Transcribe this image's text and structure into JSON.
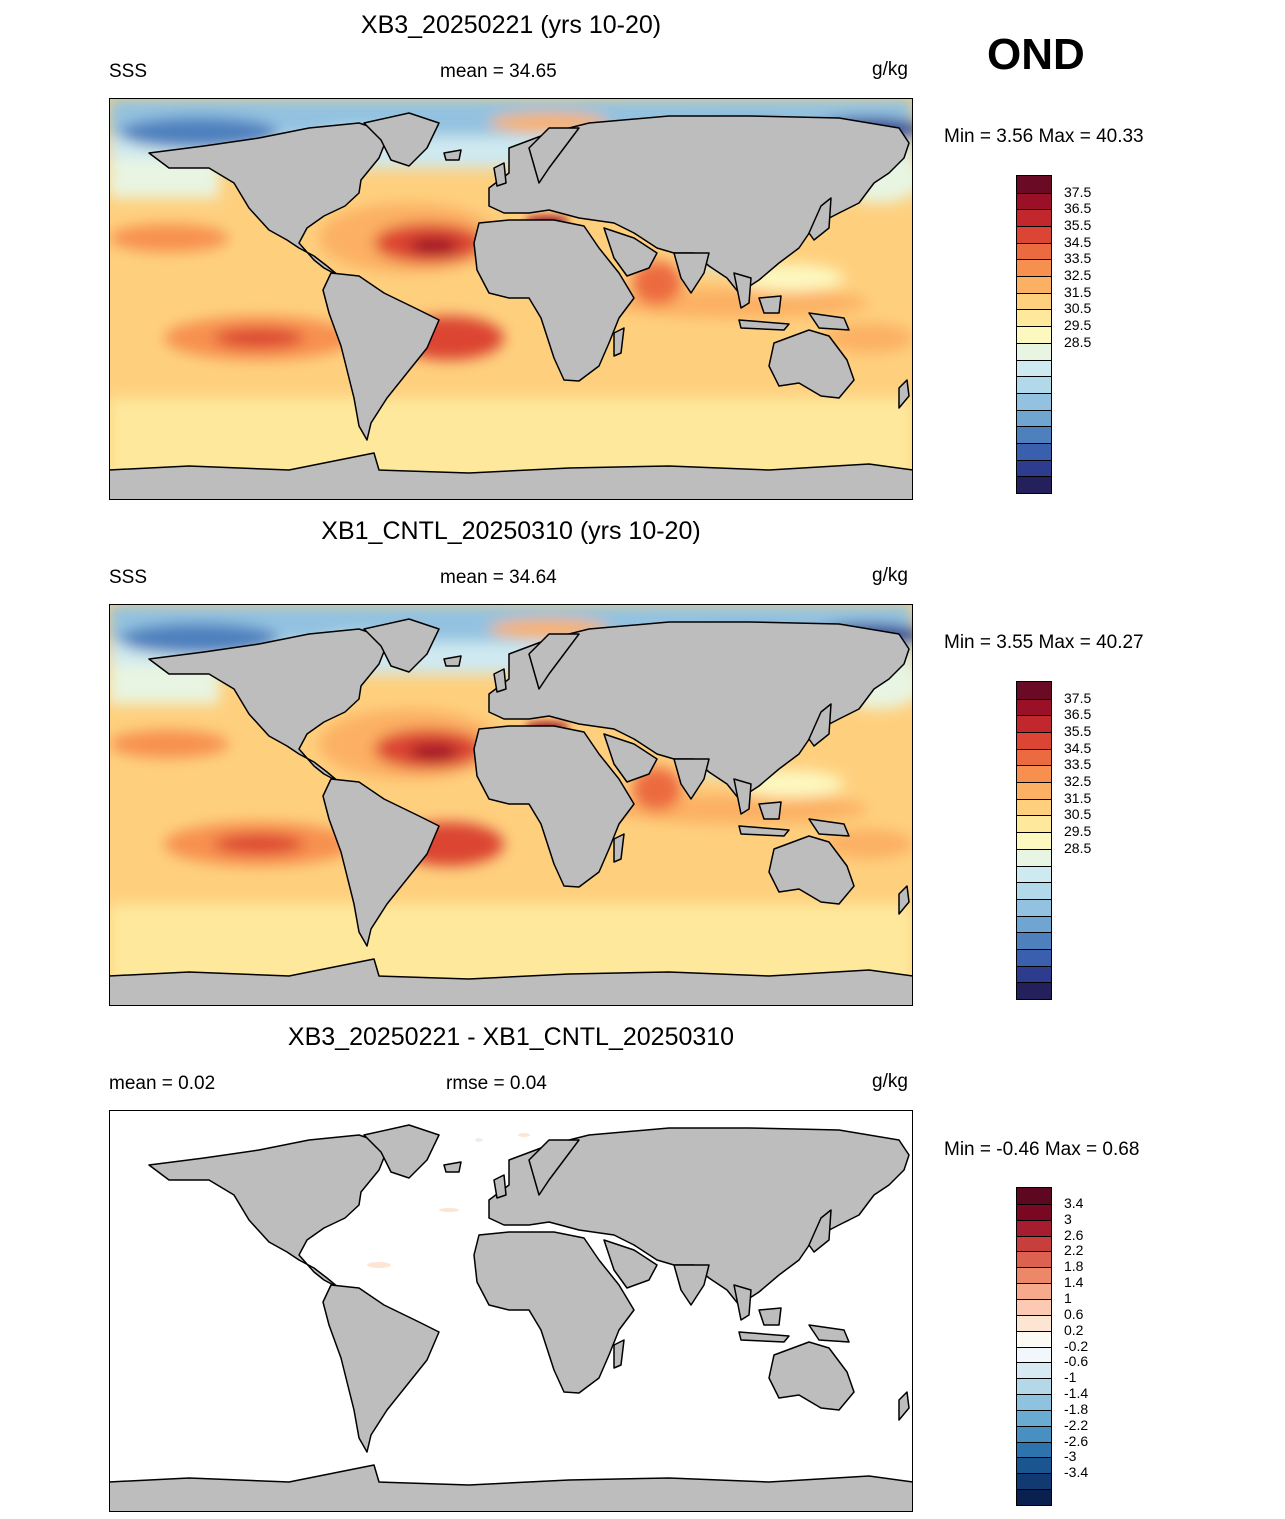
{
  "season": "OND",
  "units": "g/kg",
  "palette_sss": [
    "#23205c",
    "#2e3c8f",
    "#3a5fac",
    "#4e80be",
    "#70a4d1",
    "#93c2e0",
    "#b2d9ea",
    "#cfe9f0",
    "#e8f5e2",
    "#fdf8c0",
    "#fee89c",
    "#fed07e",
    "#fcb063",
    "#f7904f",
    "#ec6a40",
    "#dc4433",
    "#c1272d",
    "#9a1027",
    "#6b0a25"
  ],
  "palette_diff": [
    "#0a2150",
    "#123a72",
    "#1b558f",
    "#2d73ad",
    "#4990c2",
    "#6aabd1",
    "#8fc2de",
    "#b5d8e9",
    "#d7e9f2",
    "#f1f7fb",
    "#fdfaf4",
    "#fde5d3",
    "#fccab2",
    "#f7aa8b",
    "#ec8768",
    "#dd6150",
    "#c73e3d",
    "#a51d2f",
    "#7a0822",
    "#5e0720"
  ],
  "panels": [
    {
      "title": "XB3_20250221 (yrs 10-20)",
      "left_text": "SSS",
      "center_text": "mean =  34.65",
      "units": "g/kg",
      "minmax": "Min =   3.56 Max =  40.33",
      "levels": [
        "37.5",
        "36.5",
        "35.5",
        "34.5",
        "33.5",
        "32.5",
        "31.5",
        "30.5",
        "29.5",
        "28.5"
      ]
    },
    {
      "title": "XB1_CNTL_20250310 (yrs 10-20)",
      "left_text": "SSS",
      "center_text": "mean =  34.64",
      "units": "g/kg",
      "minmax": "Min =   3.55 Max =  40.27",
      "levels": [
        "37.5",
        "36.5",
        "35.5",
        "34.5",
        "33.5",
        "32.5",
        "31.5",
        "30.5",
        "29.5",
        "28.5"
      ]
    },
    {
      "title": "XB3_20250221 - XB1_CNTL_20250310",
      "left_text": "mean =   0.02",
      "center_text": "rmse =   0.04",
      "units": "g/kg",
      "minmax": "Min =  -0.46 Max =    0.68",
      "levels": [
        "3.4",
        "3",
        "2.6",
        "2.2",
        "1.8",
        "1.4",
        "1",
        "0.6",
        "0.2",
        "-0.2",
        "-0.6",
        "-1",
        "-1.4",
        "-1.8",
        "-2.2",
        "-2.6",
        "-3",
        "-3.4"
      ]
    }
  ]
}
